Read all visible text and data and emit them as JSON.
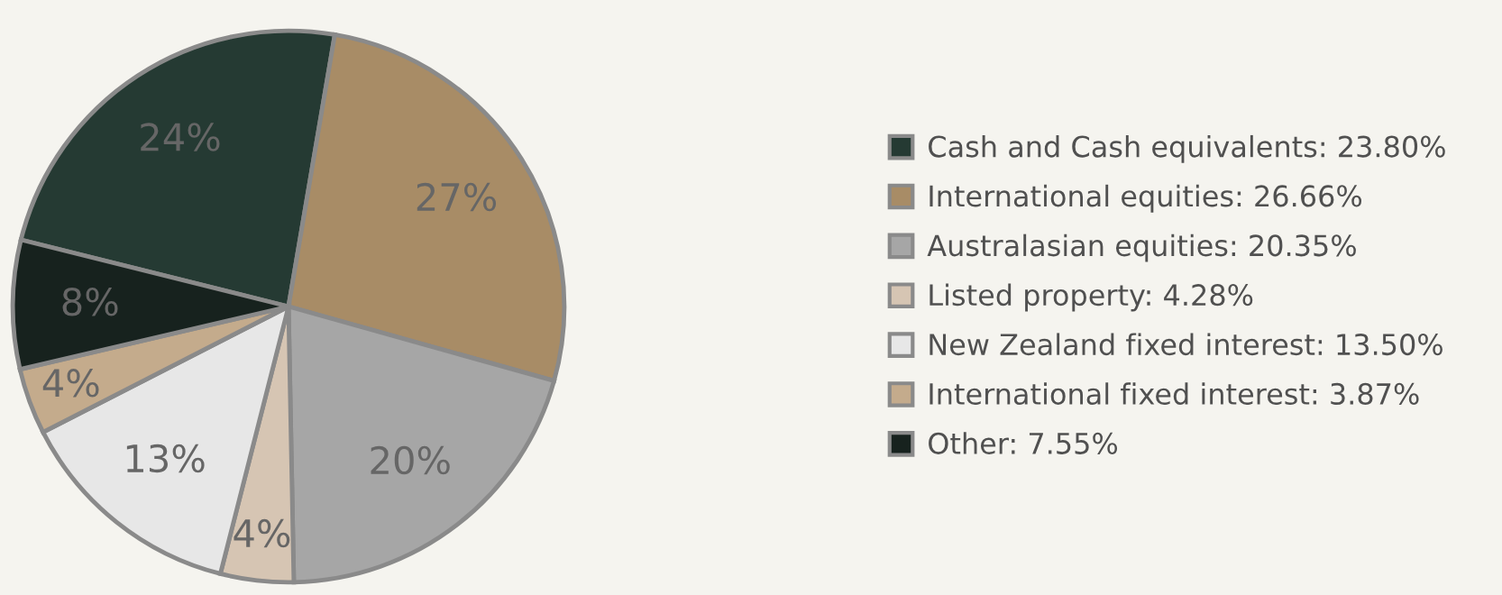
{
  "chart_data": {
    "type": "pie",
    "categories": [
      "Cash and Cash equivalents: 23.80%",
      "International equities: 26.66%",
      "Australasian equities: 20.35%",
      "Listed property: 4.28%",
      "New Zealand fixed interest: 13.50%",
      "International fixed interest: 3.87%",
      "Other: 7.55%"
    ],
    "values": [
      23.8,
      26.66,
      20.35,
      4.28,
      13.5,
      3.87,
      7.55
    ],
    "colors": [
      "#253a33",
      "#a88c66",
      "#a6a6a6",
      "#d6c5b3",
      "#e7e7e7",
      "#c4ab8c",
      "#17221e"
    ],
    "value_labels": [
      "24%",
      "27%",
      "20%",
      "4%",
      "13%",
      "4%",
      "8%"
    ],
    "legend": "right"
  }
}
